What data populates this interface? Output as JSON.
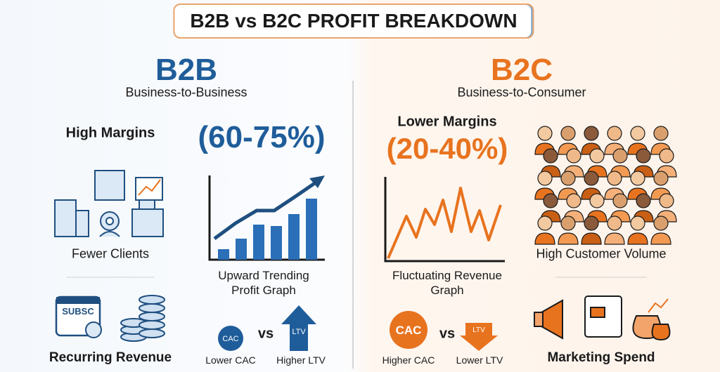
{
  "title": "B2B vs B2C PROFIT BREAKDOWN",
  "b2b": {
    "heading": "B2B",
    "subheading": "Business-to-Business",
    "margin_label": "High Margins",
    "margin_range": "(60-75%)",
    "clients_label": "Fewer Clients",
    "graph_label": "Upward Trending Profit Graph",
    "icon_text": "SUBSC",
    "revenue_label": "Recurring Revenue",
    "cac": "CAC",
    "vs": "vs",
    "ltv": "LTV",
    "cac_label": "Lower CAC",
    "ltv_label": "Higher LTV"
  },
  "b2c": {
    "heading": "B2C",
    "subheading": "Business-to-Consumer",
    "margin_label": "Lower Margins",
    "margin_range": "(20-40%)",
    "graph_label": "Fluctuating Revenue Graph",
    "volume_label": "High Customer Volume",
    "cac": "CAC",
    "vs": "vs",
    "ltv": "LTV",
    "cac_label": "Higher CAC",
    "ltv_label": "Lower LTV",
    "spend_label": "Marketing Spend"
  }
}
